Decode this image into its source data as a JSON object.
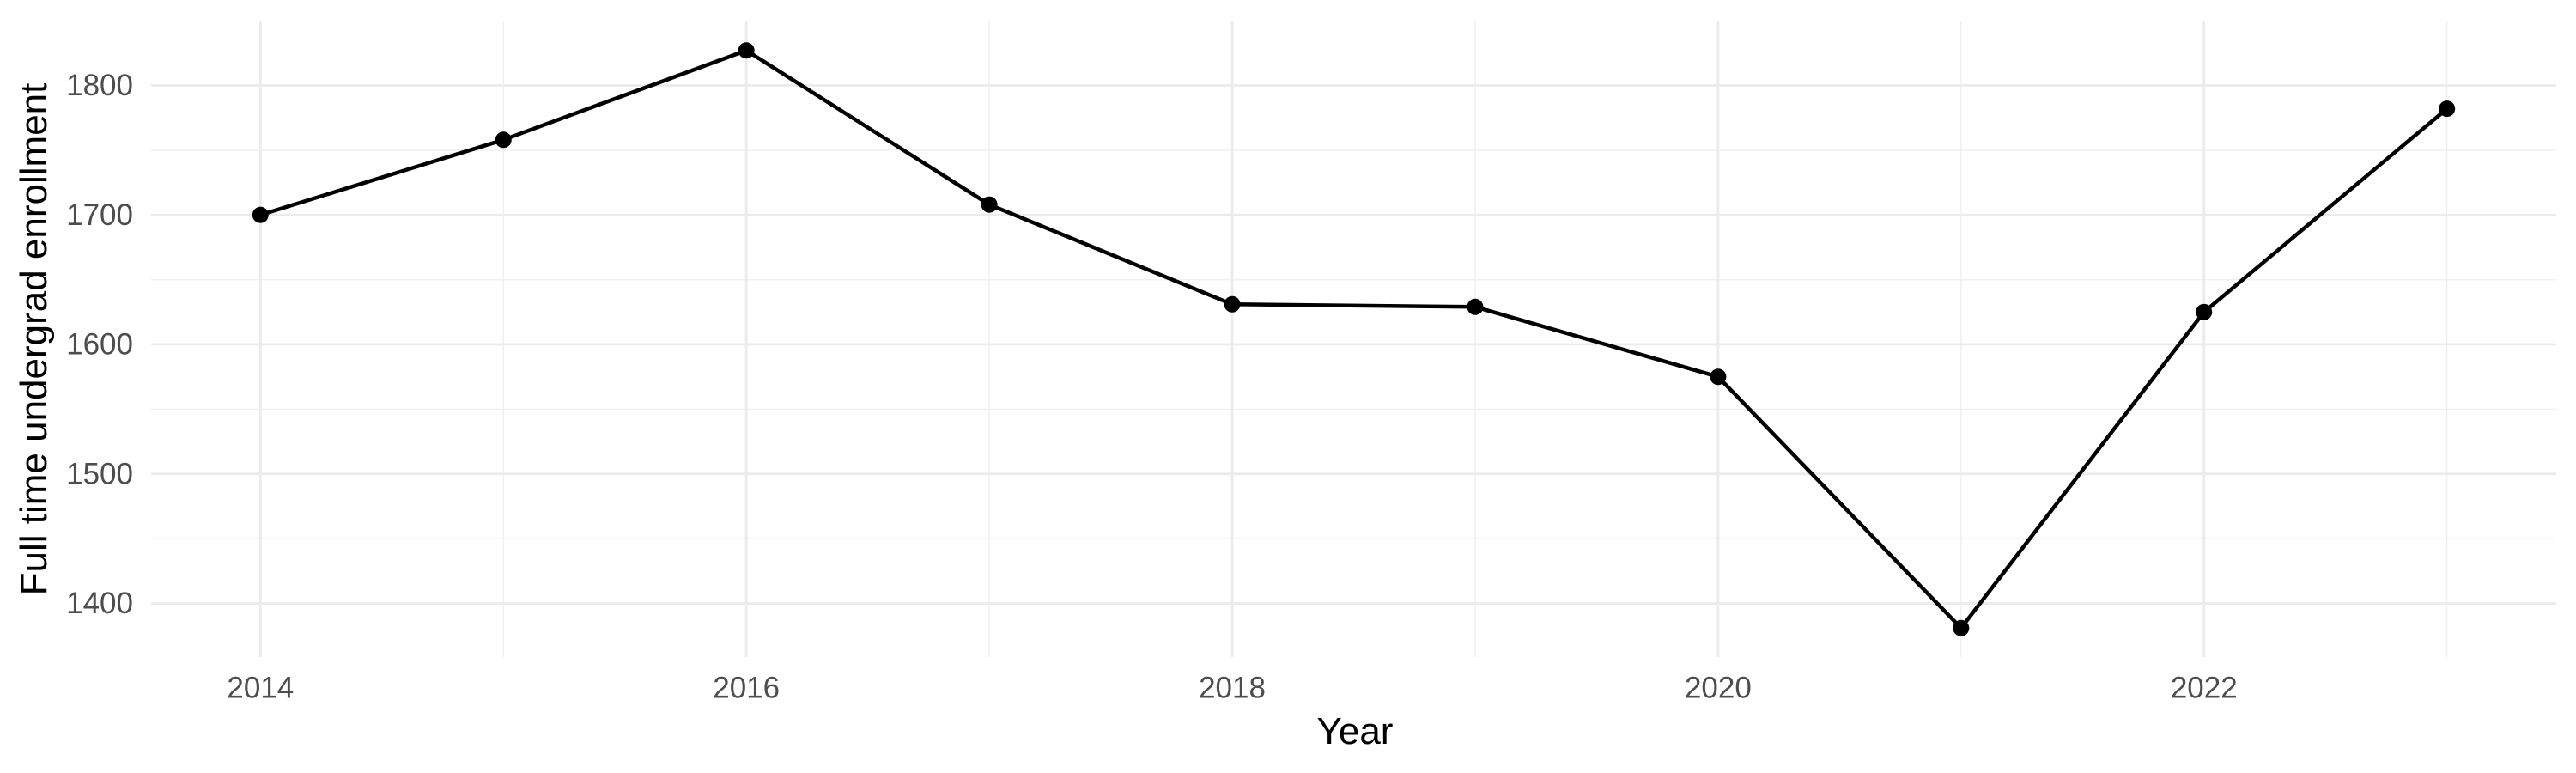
{
  "chart_data": {
    "type": "line",
    "title": "",
    "xlabel": "Year",
    "ylabel": "Full time undergrad enrollment",
    "series": [
      {
        "name": "Full time undergrad enrollment",
        "x": [
          2014,
          2015,
          2016,
          2017,
          2018,
          2019,
          2020,
          2021,
          2022,
          2023
        ],
        "values": [
          1700,
          1758,
          1827,
          1708,
          1631,
          1629,
          1575,
          1381,
          1625,
          1782
        ]
      }
    ],
    "x_tick_labels": [
      "2014",
      "2016",
      "2018",
      "2020",
      "2022"
    ],
    "x_ticks": [
      2014,
      2016,
      2018,
      2020,
      2022
    ],
    "x_minor_gridlines": [
      2015,
      2017,
      2019,
      2021,
      2023
    ],
    "y_tick_labels": [
      "1400",
      "1500",
      "1600",
      "1700",
      "1800"
    ],
    "y_ticks": [
      1400,
      1500,
      1600,
      1700,
      1800
    ],
    "y_minor_gridlines": [
      1450,
      1550,
      1650,
      1750
    ],
    "xlim": [
      2013.55,
      2023.45
    ],
    "ylim": [
      1358.6,
      1849.4
    ],
    "grid": "major-and-minor, no axis lines, no ticks",
    "legend": "none",
    "point_marker": "filled-circle",
    "colors": {
      "line": "#000000",
      "point": "#000000",
      "grid_major": "#EBEBEB",
      "grid_minor": "#F0F0F0",
      "tick_label": "#4D4D4D",
      "axis_title": "#000000",
      "background": "#FFFFFF"
    }
  }
}
